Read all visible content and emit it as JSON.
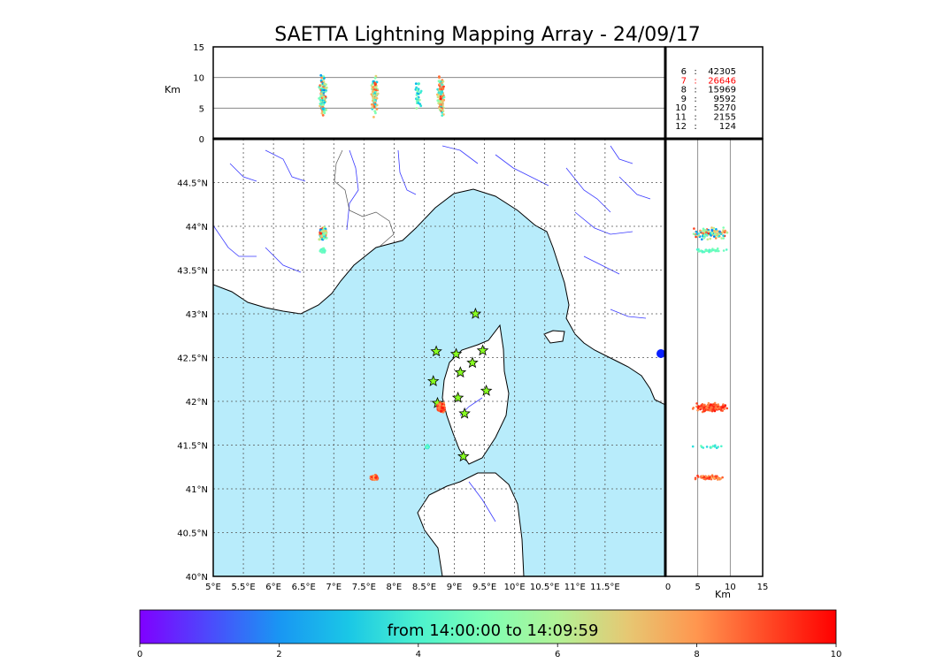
{
  "title": "SAETTA Lightning Mapping Array - 24/09/17",
  "colors": {
    "sea": "#b8ecfb",
    "land": "#ffffff",
    "coast": "#000000",
    "river": "#3a3aff",
    "border": "#555555",
    "station": "#88ff22",
    "hot": "#f2542d"
  },
  "chart_data": {
    "type": "scatter",
    "map": {
      "xlim": [
        5,
        12.5
      ],
      "ylim": [
        40,
        45
      ],
      "x_ticks": [
        "5°E",
        "5.5°E",
        "6°E",
        "6.5°E",
        "7°E",
        "7.5°E",
        "8°E",
        "8.5°E",
        "9°E",
        "9.5°E",
        "10°E",
        "10.5°E",
        "11°E",
        "11.5°E"
      ],
      "x_tick_values": [
        5,
        5.5,
        6,
        6.5,
        7,
        7.5,
        8,
        8.5,
        9,
        9.5,
        10,
        10.5,
        11,
        11.5
      ],
      "y_ticks": [
        "40°N",
        "40.5°N",
        "41°N",
        "41.5°N",
        "42°N",
        "42.5°N",
        "43°N",
        "43.5°N",
        "44°N",
        "44.5°N"
      ],
      "y_tick_values": [
        40,
        40.5,
        41,
        41.5,
        42,
        42.5,
        43,
        43.5,
        44,
        44.5
      ],
      "grid": "dotted",
      "stations": [
        [
          9.35,
          43.0
        ],
        [
          8.7,
          42.57
        ],
        [
          9.03,
          42.54
        ],
        [
          9.47,
          42.58
        ],
        [
          9.3,
          42.44
        ],
        [
          9.1,
          42.33
        ],
        [
          8.65,
          42.23
        ],
        [
          9.53,
          42.12
        ],
        [
          9.06,
          42.04
        ],
        [
          8.72,
          41.98
        ],
        [
          9.17,
          41.86
        ],
        [
          9.15,
          41.37
        ]
      ],
      "clusters": [
        {
          "lon": 6.82,
          "lat": 43.92,
          "spread": [
            0.07,
            0.08
          ],
          "n": 120,
          "t": [
            1.5,
            9.5
          ]
        },
        {
          "lon": 6.82,
          "lat": 43.72,
          "spread": [
            0.05,
            0.03
          ],
          "n": 40,
          "t": [
            4,
            5
          ]
        },
        {
          "lon": 8.78,
          "lat": 41.93,
          "spread": [
            0.08,
            0.06
          ],
          "n": 160,
          "t": [
            8,
            9.8
          ]
        },
        {
          "lon": 8.55,
          "lat": 41.48,
          "spread": [
            0.04,
            0.02
          ],
          "n": 15,
          "t": [
            3,
            5
          ]
        },
        {
          "lon": 7.67,
          "lat": 41.13,
          "spread": [
            0.08,
            0.03
          ],
          "n": 70,
          "t": [
            7.5,
            9.5
          ]
        }
      ]
    },
    "top_panel": {
      "ylabel": "Km",
      "ylim": [
        0,
        15
      ],
      "y_ticks": [
        "0",
        "5",
        "10",
        "15"
      ],
      "y_tick_values": [
        0,
        5,
        10,
        15
      ],
      "hlines": [
        5,
        10
      ]
    },
    "side_panel": {
      "xlabel": "Km",
      "xlim": [
        0,
        15
      ],
      "x_ticks": [
        "0",
        "5",
        "10",
        "15"
      ],
      "x_tick_values": [
        0,
        5,
        10,
        15
      ],
      "vlines": [
        5,
        10
      ]
    },
    "counts": [
      {
        "label": "6",
        "value": "42305",
        "color": "#000000"
      },
      {
        "label": "7",
        "value": "26646",
        "color": "#ff0000"
      },
      {
        "label": "8",
        "value": "15969",
        "color": "#000000"
      },
      {
        "label": "9",
        "value": "9592",
        "color": "#000000"
      },
      {
        "label": "10",
        "value": "5270",
        "color": "#000000"
      },
      {
        "label": "11",
        "value": "2155",
        "color": "#000000"
      },
      {
        "label": "12",
        "value": "124",
        "color": "#000000"
      }
    ],
    "colorbar": {
      "label": "from 14:00:00 to 14:09:59",
      "range": [
        0,
        10
      ],
      "ticks": [
        "0",
        "2",
        "4",
        "6",
        "8",
        "10"
      ],
      "tick_values": [
        0,
        2,
        4,
        6,
        8,
        10
      ],
      "colormap": "rainbow"
    }
  }
}
